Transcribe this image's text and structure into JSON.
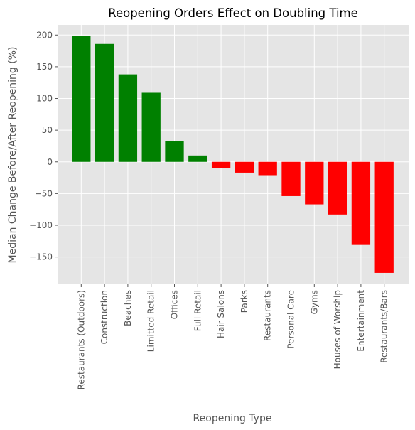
{
  "chart_data": {
    "type": "bar",
    "title": "Reopening Orders Effect on Doubling Time",
    "xlabel": "Reopening Type",
    "ylabel": "Median Change Before/After Reopening (%)",
    "categories": [
      "Restaurants (Outdoors)",
      "Construction",
      "Beaches",
      "Limitted Retail",
      "Offices",
      "Full Retail",
      "Hair Salons",
      "Parks",
      "Restaurants",
      "Personal Care",
      "Gyms",
      "Houses of Worship",
      "Entertainment",
      "Restaurants/Bars"
    ],
    "values": [
      199,
      186,
      138,
      109,
      33,
      10,
      -10,
      -17,
      -21,
      -54,
      -67,
      -83,
      -131,
      -175
    ],
    "ylim": [
      -193,
      216
    ],
    "yticks": [
      -150,
      -100,
      -50,
      0,
      50,
      100,
      150,
      200
    ],
    "ytick_labels": [
      "−150",
      "−100",
      "−50",
      "0",
      "50",
      "100",
      "150",
      "200"
    ],
    "grid": true,
    "legend": "none",
    "colors": {
      "positive": "#008000",
      "negative": "#ff0000",
      "plot_background": "#e5e5e5",
      "grid": "#ffffff"
    }
  }
}
